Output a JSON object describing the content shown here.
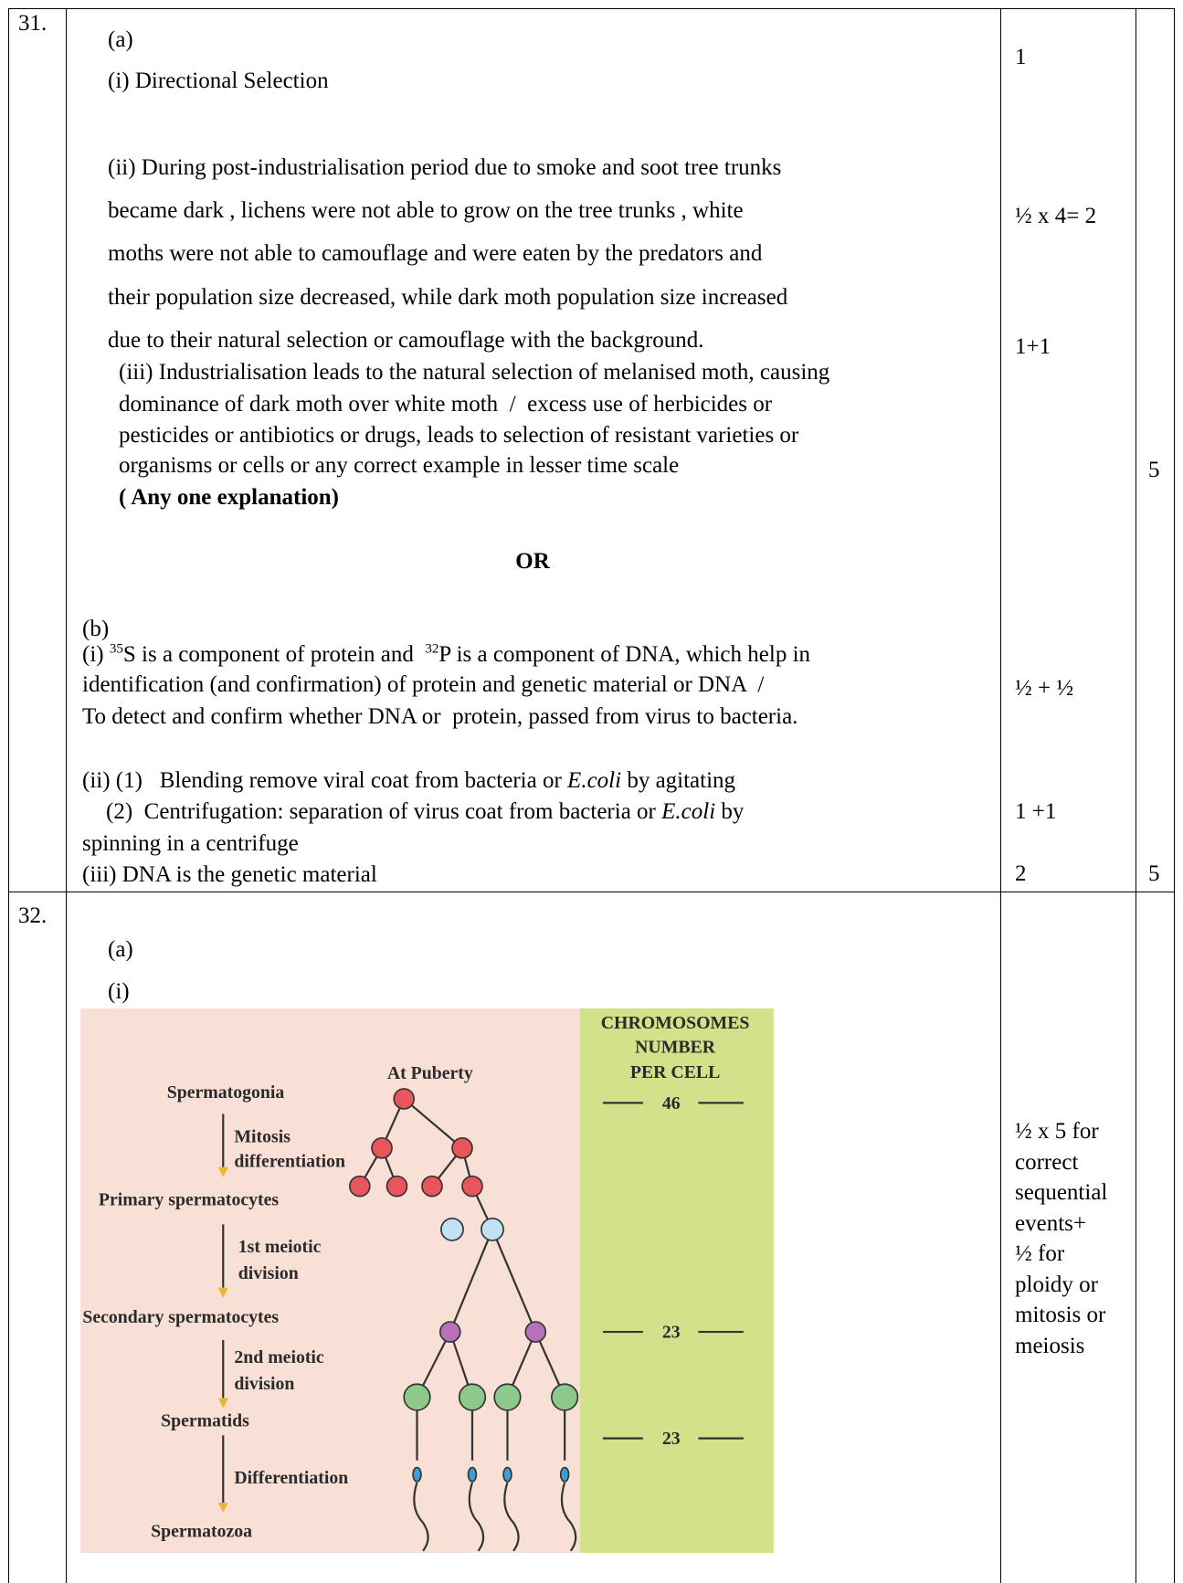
{
  "q31": {
    "number": "31.",
    "a": {
      "label": "(a)",
      "i": "(i) Directional Selection",
      "ii": [
        "(ii) During post-industrialisation period due to smoke and soot tree trunks",
        "became dark , lichens were not able to grow on the tree trunks , white",
        "moths were not able to camouflage and were eaten by the predators and",
        "their population size decreased, while dark moth population size increased",
        "due to their natural selection or camouflage with the background."
      ],
      "iii": [
        "(iii) Industrialisation leads to the natural selection of melanised moth, causing",
        "dominance of dark moth over white moth  /  excess use of herbicides or",
        "pesticides or antibiotics or drugs, leads to selection of resistant varieties or",
        "organisms or cells or any correct example in lesser time scale"
      ],
      "iii_note": "( Any one explanation)"
    },
    "or": "OR",
    "b": {
      "label": "(b)",
      "i_line1": [
        "(i) ",
        "35",
        "S is a component of protein and  ",
        "32",
        "P is a component of DNA, which help in"
      ],
      "i_line2": "identification (and confirmation) of protein and genetic material or DNA  /",
      "i_line3": "To detect and confirm whether DNA or  protein, passed from virus to bacteria.",
      "ii_line1": [
        "(ii) (1)   Blending remove viral coat from bacteria or ",
        "E.coli",
        " by agitating"
      ],
      "ii_line2": [
        "(2)  Centrifugation: separation of virus coat from bacteria or ",
        "E.coli",
        " by"
      ],
      "ii_line3": "spinning in a centrifuge",
      "iii": "(iii) DNA is the genetic material"
    },
    "marks": {
      "a_i": "1",
      "a_ii": "½ x 4= 2",
      "a_iii": "1+1",
      "b_i": "½ + ½",
      "b_ii": "1 +1",
      "b_iii": "2"
    },
    "total": {
      "a": "5",
      "b": "5"
    }
  },
  "q32": {
    "number": "32.",
    "a": {
      "label": "(a)",
      "i": "(i)"
    },
    "diagram": {
      "at_puberty": "At Puberty",
      "spermatogonia": "Spermatogonia",
      "mitosis": "Mitosis",
      "differentiation_1": "differentiation",
      "primary": "Primary spermatocytes",
      "meiotic_1": "1st meiotic",
      "division_1": "division",
      "secondary": "Secondary spermatocytes",
      "meiotic_2": "2nd meiotic",
      "division_2": "division",
      "spermatids": "Spermatids",
      "differentiation_2": "Differentiation",
      "spermatozoa": "Spermatozoa",
      "chromosomes": "CHROMOSOMES",
      "number": "NUMBER",
      "per_cell": "PER CELL",
      "count_1": "46",
      "count_2": "23",
      "count_3": "23"
    },
    "marks": [
      "½ x 5 for",
      "correct",
      "sequential",
      "events+",
      "½ for",
      "ploidy or",
      "mitosis or",
      "meiosis"
    ]
  }
}
